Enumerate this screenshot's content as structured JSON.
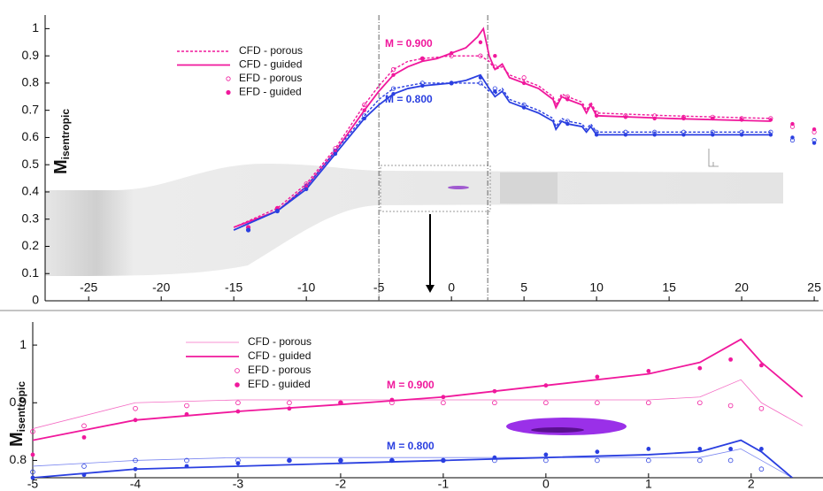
{
  "chart_data": [
    {
      "type": "line",
      "y_label": "M",
      "y_label_sub": "isentropic",
      "annotations": [
        "M = 0.900",
        "M = 0.800"
      ],
      "xlim": [
        -28,
        25.3
      ],
      "ylim": [
        0,
        1.05
      ],
      "xticks": [
        -25,
        -20,
        -15,
        -10,
        -5,
        0,
        5,
        10,
        15,
        20,
        25
      ],
      "yticks": [
        0,
        0.1,
        0.2,
        0.3,
        0.4,
        0.5,
        0.6,
        0.7,
        0.8,
        0.9,
        1
      ],
      "markers": [
        -5,
        2.5
      ],
      "series": [
        {
          "name": "CFD - porous",
          "color": "#f0189c",
          "style": "dashed",
          "x": [
            -15,
            -12,
            -10,
            -8,
            -6,
            -5,
            -4,
            -3,
            -2,
            -1,
            0,
            1,
            2,
            2.6,
            3,
            3.5,
            4,
            5,
            6,
            7,
            7.2,
            7.6,
            8,
            9,
            9.3,
            9.6,
            10,
            15,
            22
          ],
          "values": [
            0.27,
            0.34,
            0.43,
            0.56,
            0.72,
            0.79,
            0.85,
            0.88,
            0.89,
            0.895,
            0.9,
            0.9,
            0.9,
            0.88,
            0.85,
            0.86,
            0.83,
            0.81,
            0.79,
            0.75,
            0.72,
            0.76,
            0.75,
            0.73,
            0.7,
            0.73,
            0.69,
            0.68,
            0.67
          ]
        },
        {
          "name": "CFD - guided",
          "color": "#f0189c",
          "style": "solid",
          "x": [
            -15,
            -12,
            -10,
            -8,
            -6,
            -5,
            -4,
            -3,
            -2,
            -1,
            0,
            1,
            1.8,
            2.2,
            2.6,
            3,
            3.5,
            4,
            5,
            6,
            7,
            7.2,
            7.6,
            8,
            9,
            9.3,
            9.6,
            10,
            15,
            22
          ],
          "values": [
            0.27,
            0.33,
            0.42,
            0.55,
            0.7,
            0.77,
            0.83,
            0.86,
            0.88,
            0.89,
            0.91,
            0.93,
            0.97,
            1.0,
            0.9,
            0.85,
            0.87,
            0.82,
            0.8,
            0.78,
            0.74,
            0.71,
            0.75,
            0.74,
            0.72,
            0.69,
            0.72,
            0.68,
            0.67,
            0.66
          ]
        },
        {
          "name": "EFD - porous",
          "color": "#f0189c",
          "style": "open",
          "x": [
            -14,
            -12,
            -10,
            -8,
            -6,
            -4,
            -2,
            0,
            2,
            3,
            5,
            8,
            10,
            12,
            14,
            16,
            18,
            20,
            22,
            23.5,
            25
          ],
          "values": [
            0.27,
            0.34,
            0.43,
            0.56,
            0.72,
            0.85,
            0.89,
            0.9,
            0.9,
            0.86,
            0.82,
            0.75,
            0.69,
            0.68,
            0.68,
            0.675,
            0.675,
            0.67,
            0.67,
            0.64,
            0.62
          ]
        },
        {
          "name": "EFD - guided",
          "color": "#f0189c",
          "style": "filled",
          "x": [
            -14,
            -12,
            -10,
            -8,
            -6,
            -4,
            -2,
            0,
            2,
            3,
            5,
            8,
            10,
            12,
            14,
            16,
            18,
            20,
            22,
            23.5,
            25
          ],
          "values": [
            0.27,
            0.34,
            0.42,
            0.55,
            0.7,
            0.83,
            0.89,
            0.91,
            0.95,
            0.9,
            0.8,
            0.74,
            0.68,
            0.675,
            0.67,
            0.67,
            0.67,
            0.665,
            0.665,
            0.65,
            0.63
          ]
        },
        {
          "color": "#2a3fe0",
          "style": "dashed",
          "x": [
            -15,
            -12,
            -10,
            -8,
            -6,
            -5,
            -4,
            -3,
            -2,
            -1,
            0,
            1,
            2,
            2.6,
            3,
            3.5,
            4,
            5,
            6,
            7,
            7.2,
            7.6,
            8,
            9,
            9.3,
            9.6,
            10,
            15,
            22
          ],
          "values": [
            0.26,
            0.33,
            0.42,
            0.55,
            0.68,
            0.74,
            0.78,
            0.79,
            0.8,
            0.8,
            0.8,
            0.8,
            0.8,
            0.77,
            0.76,
            0.78,
            0.74,
            0.72,
            0.7,
            0.67,
            0.64,
            0.67,
            0.66,
            0.65,
            0.63,
            0.65,
            0.62,
            0.62,
            0.62
          ]
        },
        {
          "color": "#2a3fe0",
          "style": "solid",
          "x": [
            -15,
            -12,
            -10,
            -8,
            -6,
            -5,
            -4,
            -3,
            -2,
            -1,
            0,
            1,
            2,
            2.6,
            3,
            3.5,
            4,
            5,
            6,
            7,
            7.2,
            7.6,
            8,
            9,
            9.3,
            9.6,
            10,
            15,
            22
          ],
          "values": [
            0.26,
            0.33,
            0.41,
            0.54,
            0.67,
            0.72,
            0.76,
            0.78,
            0.79,
            0.795,
            0.8,
            0.81,
            0.83,
            0.78,
            0.75,
            0.77,
            0.73,
            0.71,
            0.69,
            0.66,
            0.63,
            0.66,
            0.65,
            0.64,
            0.62,
            0.64,
            0.61,
            0.61,
            0.61
          ]
        },
        {
          "color": "#2a3fe0",
          "style": "open",
          "x": [
            -14,
            -12,
            -10,
            -8,
            -6,
            -4,
            -2,
            0,
            2,
            3,
            5,
            8,
            10,
            12,
            14,
            16,
            18,
            20,
            22,
            23.5,
            25
          ],
          "values": [
            0.26,
            0.33,
            0.42,
            0.55,
            0.68,
            0.78,
            0.8,
            0.8,
            0.8,
            0.78,
            0.72,
            0.66,
            0.62,
            0.62,
            0.62,
            0.62,
            0.62,
            0.62,
            0.62,
            0.59,
            0.59
          ]
        },
        {
          "color": "#2a3fe0",
          "style": "filled",
          "x": [
            -14,
            -12,
            -10,
            -8,
            -6,
            -4,
            -2,
            0,
            2,
            3,
            5,
            8,
            10,
            12,
            14,
            16,
            18,
            20,
            22,
            23.5,
            25
          ],
          "values": [
            0.26,
            0.33,
            0.41,
            0.54,
            0.67,
            0.76,
            0.79,
            0.8,
            0.82,
            0.77,
            0.71,
            0.65,
            0.61,
            0.61,
            0.61,
            0.61,
            0.61,
            0.61,
            0.61,
            0.6,
            0.58
          ]
        }
      ]
    },
    {
      "type": "line",
      "y_label": "M",
      "y_label_sub": "isentropic",
      "annotations": [
        "M = 0.900",
        "M = 0.800"
      ],
      "xlim": [
        -5,
        2.7
      ],
      "ylim": [
        0.77,
        1.04
      ],
      "xticks": [
        -5,
        -4,
        -3,
        -2,
        -1,
        0,
        1,
        2
      ],
      "yticks": [
        0.8,
        0.9,
        1
      ],
      "series": [
        {
          "name": "CFD - porous",
          "color": "#f46cc4",
          "style": "thin",
          "x": [
            -5,
            -4,
            -3,
            -2,
            -1,
            0,
            1,
            1.5,
            1.9,
            2.1,
            2.5
          ],
          "values": [
            0.855,
            0.9,
            0.905,
            0.905,
            0.905,
            0.905,
            0.905,
            0.91,
            0.94,
            0.9,
            0.86
          ]
        },
        {
          "name": "CFD - guided",
          "color": "#f0189c",
          "style": "solid",
          "x": [
            -5,
            -4,
            -3,
            -2,
            -1,
            0,
            1,
            1.5,
            1.9,
            2.1,
            2.5
          ],
          "values": [
            0.835,
            0.87,
            0.885,
            0.897,
            0.91,
            0.93,
            0.95,
            0.97,
            1.01,
            0.97,
            0.91
          ]
        },
        {
          "name": "EFD - porous",
          "color": "#f0189c",
          "style": "open",
          "x": [
            -5,
            -4.5,
            -4,
            -3.5,
            -3,
            -2.5,
            -2,
            -1.5,
            -1,
            -0.5,
            0,
            0.5,
            1,
            1.5,
            1.8,
            2.1
          ],
          "values": [
            0.85,
            0.86,
            0.89,
            0.895,
            0.9,
            0.9,
            0.9,
            0.9,
            0.9,
            0.9,
            0.9,
            0.9,
            0.9,
            0.9,
            0.895,
            0.89
          ]
        },
        {
          "name": "EFD - guided",
          "color": "#f0189c",
          "style": "filled",
          "x": [
            -5,
            -4.5,
            -4,
            -3.5,
            -3,
            -2.5,
            -2,
            -1.5,
            -1,
            -0.5,
            0,
            0.5,
            1,
            1.5,
            1.8,
            2.1
          ],
          "values": [
            0.81,
            0.84,
            0.87,
            0.88,
            0.885,
            0.89,
            0.9,
            0.905,
            0.91,
            0.92,
            0.93,
            0.945,
            0.955,
            0.96,
            0.975,
            0.965
          ]
        },
        {
          "color": "#7a86f0",
          "style": "thin",
          "x": [
            -5,
            -4,
            -3,
            -2,
            -1,
            0,
            1,
            1.5,
            1.9,
            2.1,
            2.4
          ],
          "values": [
            0.79,
            0.8,
            0.805,
            0.805,
            0.805,
            0.805,
            0.805,
            0.805,
            0.82,
            0.8,
            0.77
          ]
        },
        {
          "color": "#2a3fe0",
          "style": "solid",
          "x": [
            -5,
            -4,
            -3,
            -2,
            -1,
            0,
            1,
            1.5,
            1.9,
            2.1,
            2.4
          ],
          "values": [
            0.77,
            0.785,
            0.79,
            0.795,
            0.8,
            0.805,
            0.81,
            0.815,
            0.835,
            0.815,
            0.77
          ]
        },
        {
          "color": "#2a3fe0",
          "style": "open",
          "x": [
            -5,
            -4.5,
            -4,
            -3.5,
            -3,
            -2.5,
            -2,
            -1.5,
            -1,
            -0.5,
            0,
            0.5,
            1,
            1.5,
            1.8,
            2.1
          ],
          "values": [
            0.78,
            0.79,
            0.8,
            0.8,
            0.8,
            0.8,
            0.8,
            0.8,
            0.8,
            0.8,
            0.8,
            0.8,
            0.8,
            0.8,
            0.8,
            0.785
          ]
        },
        {
          "color": "#2a3fe0",
          "style": "filled",
          "x": [
            -5,
            -4.5,
            -4,
            -3.5,
            -3,
            -2.5,
            -2,
            -1.5,
            -1,
            -0.5,
            0,
            0.5,
            1,
            1.5,
            1.8,
            2.1
          ],
          "values": [
            0.77,
            0.775,
            0.785,
            0.79,
            0.795,
            0.8,
            0.8,
            0.8,
            0.8,
            0.805,
            0.81,
            0.815,
            0.82,
            0.82,
            0.82,
            0.82
          ]
        }
      ]
    }
  ]
}
